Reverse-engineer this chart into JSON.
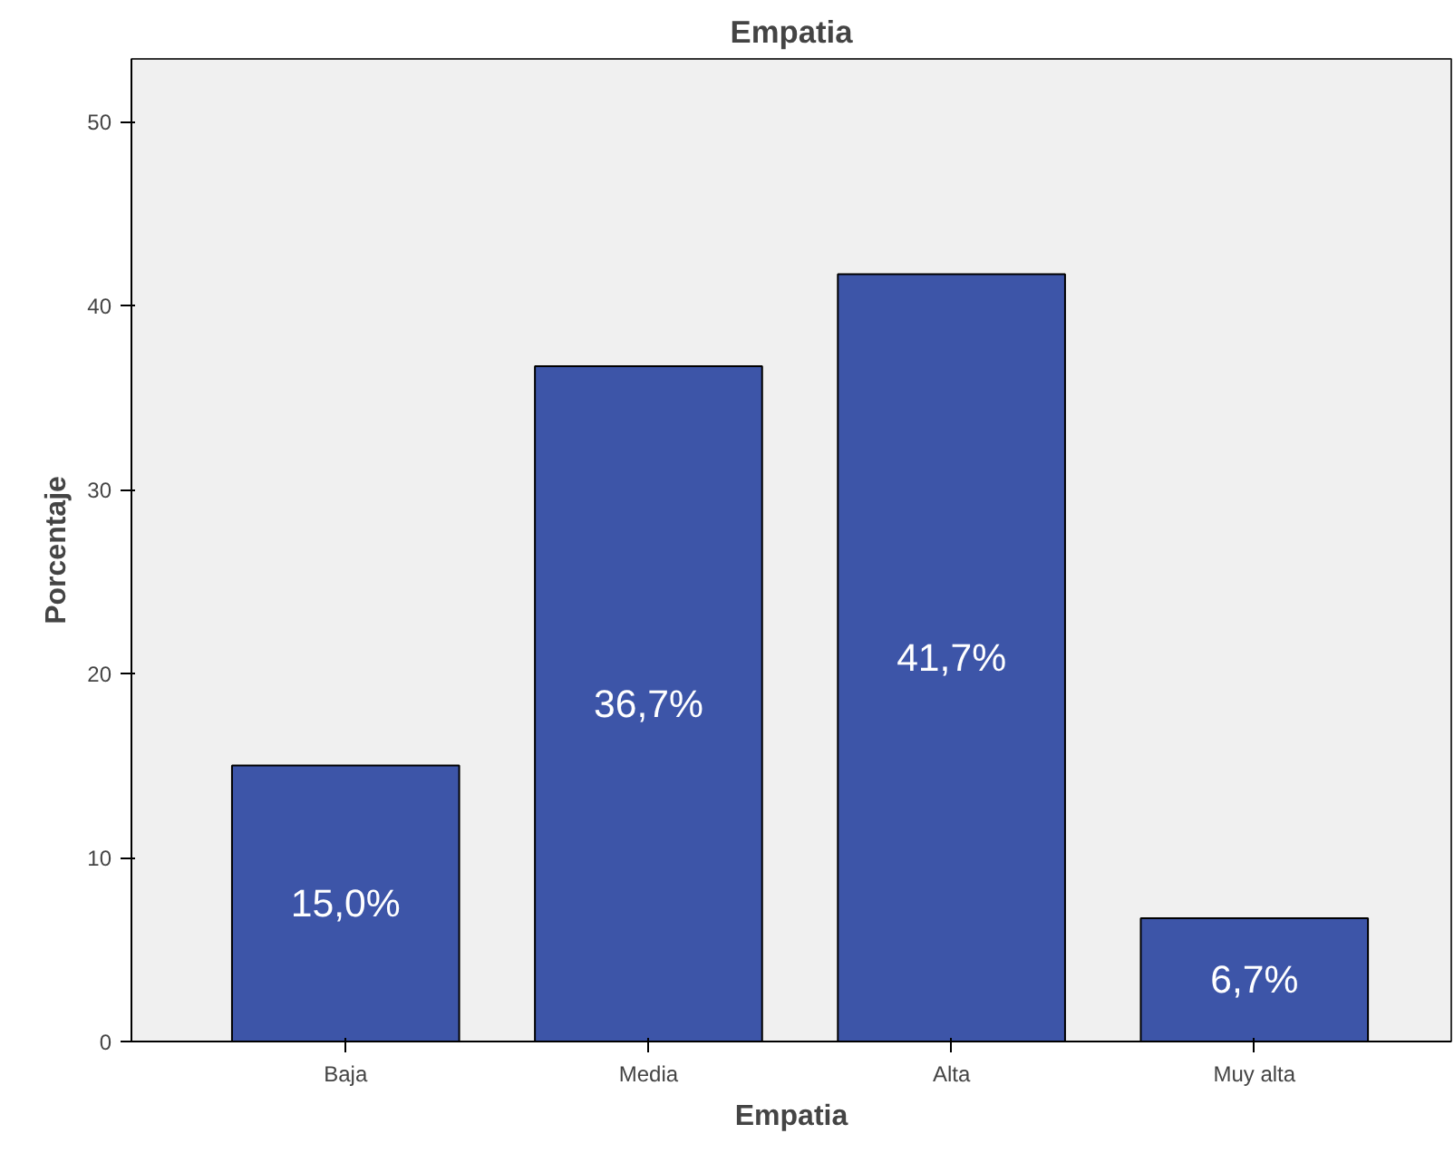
{
  "chart_data": {
    "type": "bar",
    "title": "Empatia",
    "xlabel": "Empatia",
    "ylabel": "Porcentaje",
    "categories": [
      "Baja",
      "Media",
      "Alta",
      "Muy alta"
    ],
    "values": [
      15.0,
      36.7,
      41.7,
      6.7
    ],
    "value_labels": [
      "15,0%",
      "36,7%",
      "41,7%",
      "6,7%"
    ],
    "color": "#3d55a8",
    "ylim": [
      0,
      53.4
    ],
    "yticks": [
      0,
      10,
      20,
      30,
      40,
      50
    ],
    "grid": false
  }
}
